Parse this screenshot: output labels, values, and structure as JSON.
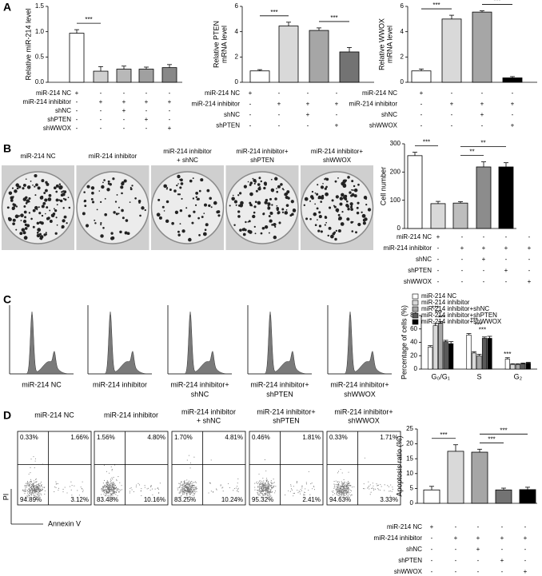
{
  "panel_labels": [
    "A",
    "B",
    "C",
    "D"
  ],
  "colony_captions": [
    [
      "miR-214 NC"
    ],
    [
      "miR-214 inhibitor"
    ],
    [
      "miR-214 inhibitor",
      "+ shNC"
    ],
    [
      "miR-214 inhibitor+",
      "shPTEN"
    ],
    [
      "miR-214 inhibitor+",
      "shWWOX"
    ]
  ],
  "cycle_captions": [
    [
      "miR-214 NC"
    ],
    [
      "miR-214 inhibitor"
    ],
    [
      "miR-214 inhibitor+",
      "shNC"
    ],
    [
      "miR-214 inhibitor+",
      "shPTEN"
    ],
    [
      "miR-214 inhibitor+",
      "shWWOX"
    ]
  ],
  "flow": {
    "captions": [
      [
        "miR-214 NC"
      ],
      [
        "miR-214 inhibitor"
      ],
      [
        "miR-214 inhibitor",
        "+ shNC"
      ],
      [
        "miR-214 inhibitor+",
        "shPTEN"
      ],
      [
        "miR-214 inhibitor+",
        "shWWOX"
      ]
    ],
    "quadrants": [
      [
        "0.33%",
        "1.66%",
        "94.89%",
        "3.12%"
      ],
      [
        "1.56%",
        "4.80%",
        "83.48%",
        "10.16%"
      ],
      [
        "1.70%",
        "4.81%",
        "83.25%",
        "10.24%"
      ],
      [
        "0.46%",
        "1.81%",
        "95.32%",
        "2.41%"
      ],
      [
        "0.33%",
        "1.71%",
        "94.63%",
        "3.33%"
      ]
    ],
    "x_label": "Annexin V",
    "y_label": "PI"
  },
  "chart_data": [
    {
      "type": "bar",
      "ylabel": [
        "Relative miR-214 level"
      ],
      "values": [
        0.97,
        0.22,
        0.26,
        0.26,
        0.29
      ],
      "errors": [
        0.07,
        0.09,
        0.06,
        0.04,
        0.06
      ],
      "colors": [
        "#ffffff",
        "#d0d0d0",
        "#b8b8b8",
        "#a0a0a0",
        "#888888"
      ],
      "ylim": [
        0,
        1.5
      ],
      "yticks": [
        {
          "value": 0,
          "label": "0.0"
        },
        {
          "value": 0.5,
          "label": "0.5"
        },
        {
          "value": 1,
          "label": "1.0"
        },
        {
          "value": 1.5,
          "label": "1.5"
        }
      ],
      "annotations": [
        "***"
      ],
      "conditions": [
        {
          "label": "miR-214 NC",
          "marks": [
            "+",
            "-",
            "-",
            "-",
            "-"
          ]
        },
        {
          "label": "miR-214 inhibitor",
          "marks": [
            "-",
            "+",
            "+",
            "+",
            "+"
          ]
        },
        {
          "label": "shNC",
          "marks": [
            "-",
            "-",
            "+",
            "-",
            "-"
          ]
        },
        {
          "label": "shPTEN",
          "marks": [
            "-",
            "-",
            "-",
            "+",
            "-"
          ]
        },
        {
          "label": "shWWOX",
          "marks": [
            "-",
            "-",
            "-",
            "-",
            "+"
          ]
        }
      ]
    },
    {
      "type": "bar",
      "ylabel": [
        "Relative PTEN",
        "mRNA level"
      ],
      "values": [
        0.9,
        4.45,
        4.1,
        2.4
      ],
      "errors": [
        0.1,
        0.3,
        0.2,
        0.35
      ],
      "colors": [
        "#ffffff",
        "#d9d9d9",
        "#a6a6a6",
        "#737373"
      ],
      "ylim": [
        0,
        6
      ],
      "yticks": [
        0,
        2,
        4,
        6
      ],
      "annotations": [
        "***",
        "***"
      ],
      "conditions": [
        {
          "label": "miR-214 NC",
          "marks": [
            "+",
            "-",
            "-",
            "-"
          ]
        },
        {
          "label": "miR-214 inhibitor",
          "marks": [
            "-",
            "+",
            "+",
            "+"
          ]
        },
        {
          "label": "shNC",
          "marks": [
            "-",
            "-",
            "+",
            "-"
          ]
        },
        {
          "label": "shPTEN",
          "marks": [
            "-",
            "-",
            "-",
            "+"
          ]
        }
      ]
    },
    {
      "type": "bar",
      "ylabel": [
        "Relative WWOX",
        "mRNA level"
      ],
      "values": [
        0.9,
        5.0,
        5.55,
        0.35
      ],
      "errors": [
        0.15,
        0.3,
        0.1,
        0.1
      ],
      "colors": [
        "#ffffff",
        "#d9d9d9",
        "#a6a6a6",
        "#000000"
      ],
      "ylim": [
        0,
        6
      ],
      "yticks": [
        0,
        2,
        4,
        6
      ],
      "annotations": [
        "***",
        "***"
      ],
      "conditions": [
        {
          "label": "miR-214 NC",
          "marks": [
            "+",
            "-",
            "-",
            "-"
          ]
        },
        {
          "label": "miR-214 inhibitor",
          "marks": [
            "-",
            "+",
            "+",
            "+"
          ]
        },
        {
          "label": "shNC",
          "marks": [
            "-",
            "-",
            "+",
            "-"
          ]
        },
        {
          "label": "shWWOX",
          "marks": [
            "-",
            "-",
            "-",
            "+"
          ]
        }
      ]
    },
    {
      "type": "bar",
      "ylabel": [
        "Cell number"
      ],
      "values": [
        258,
        88,
        90,
        218,
        218
      ],
      "errors": [
        12,
        8,
        5,
        18,
        15
      ],
      "colors": [
        "#ffffff",
        "#d9d9d9",
        "#bdbdbd",
        "#8c8c8c",
        "#000000"
      ],
      "ylim": [
        0,
        300
      ],
      "yticks": [
        0,
        100,
        200,
        300
      ],
      "annotations": [
        "***",
        "**",
        "**"
      ],
      "conditions": [
        {
          "label": "miR-214 NC",
          "marks": [
            "+",
            "-",
            "-",
            "-",
            "-"
          ]
        },
        {
          "label": "miR-214 inhibitor",
          "marks": [
            "-",
            "+",
            "+",
            "+",
            "+"
          ]
        },
        {
          "label": "shNC",
          "marks": [
            "-",
            "-",
            "+",
            "-",
            "-"
          ]
        },
        {
          "label": "shPTEN",
          "marks": [
            "-",
            "-",
            "-",
            "+",
            "-"
          ]
        },
        {
          "label": "shWWOX",
          "marks": [
            "-",
            "-",
            "-",
            "-",
            "+"
          ]
        }
      ]
    },
    {
      "type": "grouped_bar",
      "ylabel": [
        "Percentage of cells (%)"
      ],
      "categories": [
        "G₀/G₁",
        "S",
        "G₂"
      ],
      "series": [
        {
          "name": "miR-214 NC",
          "color": "#ffffff",
          "values": [
            33,
            51,
            15
          ],
          "errors": [
            2,
            2,
            2
          ]
        },
        {
          "name": "miR-214 inhibitor",
          "color": "#d9d9d9",
          "values": [
            65,
            24,
            7
          ],
          "errors": [
            3,
            2,
            1
          ]
        },
        {
          "name": "miR-214 inhibitor+shNC",
          "color": "#a6a6a6",
          "values": [
            69,
            20,
            7
          ],
          "errors": [
            2,
            2,
            1
          ]
        },
        {
          "name": "miR-214 inhibitor+shPTEN",
          "color": "#595959",
          "values": [
            41,
            46,
            8
          ],
          "errors": [
            2,
            2,
            1
          ]
        },
        {
          "name": "miR-214 inhibitor+shWWOX",
          "color": "#000000",
          "values": [
            38,
            46,
            9
          ],
          "errors": [
            3,
            3,
            1
          ]
        }
      ],
      "ylim": [
        0,
        80
      ],
      "yticks": [
        0,
        20,
        40,
        60,
        80
      ],
      "annotations": [
        "***",
        "***",
        "***",
        "***",
        "***",
        "***",
        "***"
      ]
    },
    {
      "type": "bar",
      "ylabel": [
        "Apoptosis ratio (%)"
      ],
      "values": [
        4.5,
        17.5,
        17.2,
        4.5,
        4.6
      ],
      "errors": [
        1.2,
        2.2,
        1.0,
        0.6,
        0.8
      ],
      "colors": [
        "#ffffff",
        "#d9d9d9",
        "#a6a6a6",
        "#737373",
        "#000000"
      ],
      "ylim": [
        0,
        25
      ],
      "yticks": [
        0,
        5,
        10,
        15,
        20,
        25
      ],
      "annotations": [
        "***",
        "***",
        "***"
      ],
      "conditions": [
        {
          "label": "miR-214 NC",
          "marks": [
            "+",
            "-",
            "-",
            "-",
            "-"
          ]
        },
        {
          "label": "miR-214 inhibitor",
          "marks": [
            "-",
            "+",
            "+",
            "+",
            "+"
          ]
        },
        {
          "label": "shNC",
          "marks": [
            "-",
            "-",
            "+",
            "-",
            "-"
          ]
        },
        {
          "label": "shPTEN",
          "marks": [
            "-",
            "-",
            "-",
            "+",
            "-"
          ]
        },
        {
          "label": "shWWOX",
          "marks": [
            "-",
            "-",
            "-",
            "-",
            "+"
          ]
        }
      ]
    }
  ]
}
